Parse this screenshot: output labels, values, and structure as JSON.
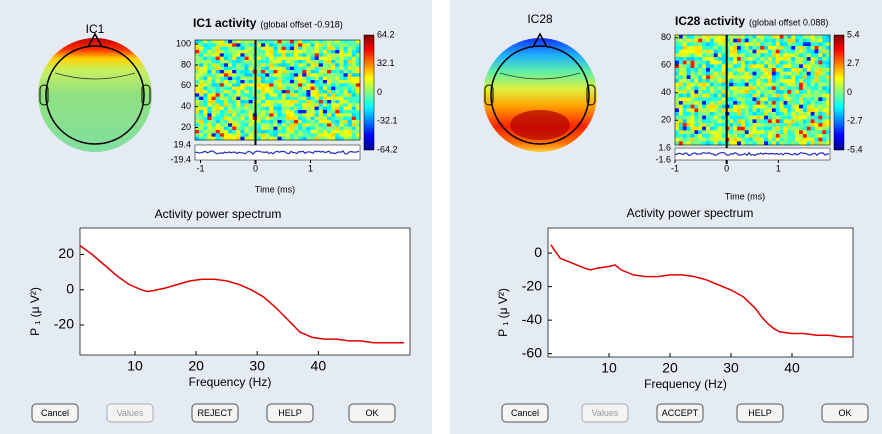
{
  "panels": [
    {
      "component": "IC1",
      "erp_image": {
        "title": "IC1 activity",
        "note": "(global offset -0.918)",
        "ylim": [
          8,
          104
        ],
        "yticks": [
          20,
          40,
          60,
          80,
          100
        ],
        "xlim": [
          -1.1,
          1.9
        ],
        "xticks": [
          -1,
          0,
          1
        ],
        "xlabel": "Time (ms)",
        "clim": [
          -64.2,
          64.2
        ],
        "cticks": [
          64.2,
          32.1,
          0,
          -32.1,
          -64.2
        ],
        "trace_ylim": [
          -19.4,
          19.4
        ],
        "trace_yticks": [
          19.4,
          -19.4
        ]
      },
      "spectrum": {
        "type": "line",
        "title": "Activity power spectrum",
        "xlabel": "Frequency (Hz)",
        "ylabel": "P ₁ (μ V²)",
        "color": "#e00000",
        "x": [
          1,
          3,
          5,
          7,
          9,
          11,
          12,
          13,
          15,
          17,
          19,
          21,
          23,
          25,
          27,
          29,
          31,
          33,
          35,
          37,
          39,
          41,
          43,
          45,
          47,
          49,
          51,
          53,
          54
        ],
        "values": [
          25,
          20,
          14,
          8,
          3,
          0,
          -1,
          -0.5,
          1,
          3,
          5,
          6,
          6,
          5,
          3,
          0,
          -4,
          -10,
          -17,
          -24,
          -27,
          -28,
          -28,
          -29,
          -29,
          -30,
          -30,
          -30,
          -30
        ],
        "xlim": [
          1,
          55
        ],
        "xticks": [
          10,
          20,
          30,
          40
        ],
        "ylim": [
          -37,
          35
        ],
        "yticks": [
          -20,
          0,
          20
        ]
      },
      "buttons": [
        {
          "label": "Cancel",
          "enabled": true
        },
        {
          "label": "Values",
          "enabled": false
        },
        {
          "label": "REJECT",
          "enabled": true
        },
        {
          "label": "HELP",
          "enabled": true
        },
        {
          "label": "OK",
          "enabled": true
        }
      ]
    },
    {
      "component": "IC28",
      "erp_image": {
        "title": "IC28 activity",
        "note": "(global offset 0.088)",
        "ylim": [
          2,
          82
        ],
        "yticks": [
          20,
          40,
          60,
          80
        ],
        "xlim": [
          -1,
          2
        ],
        "xticks": [
          -1,
          0,
          1
        ],
        "xlabel": "Time (ms)",
        "clim": [
          -5.4,
          5.4
        ],
        "cticks": [
          5.4,
          2.7,
          0,
          -2.7,
          -5.4
        ],
        "trace_ylim": [
          -1.6,
          1.6
        ],
        "trace_yticks": [
          1.6,
          -1.6
        ]
      },
      "spectrum": {
        "type": "line",
        "title": "Activity power spectrum",
        "xlabel": "Frequency (Hz)",
        "ylabel": "P ₁ (μ V²)",
        "color": "#e00000",
        "x": [
          0.5,
          1,
          2,
          4,
          6,
          7,
          8,
          10,
          11,
          12,
          14,
          16,
          18,
          20,
          22,
          24,
          26,
          28,
          30,
          32,
          34,
          35,
          36,
          37,
          38,
          40,
          42,
          44,
          46,
          48,
          50
        ],
        "values": [
          5,
          2,
          -3,
          -6,
          -9,
          -10,
          -9,
          -8,
          -7,
          -10,
          -13,
          -14,
          -14,
          -13,
          -13,
          -14,
          -16,
          -19,
          -22,
          -26,
          -33,
          -38,
          -42,
          -45,
          -47,
          -48,
          -48,
          -49,
          -49,
          -50,
          -50
        ],
        "xlim": [
          0,
          50
        ],
        "xticks": [
          10,
          20,
          30,
          40
        ],
        "ylim": [
          -62,
          15
        ],
        "yticks": [
          -60,
          -40,
          -20,
          0
        ]
      },
      "buttons": [
        {
          "label": "Cancel",
          "enabled": true
        },
        {
          "label": "Values",
          "enabled": false
        },
        {
          "label": "ACCEPT",
          "enabled": true
        },
        {
          "label": "HELP",
          "enabled": true
        },
        {
          "label": "OK",
          "enabled": true
        }
      ]
    }
  ]
}
